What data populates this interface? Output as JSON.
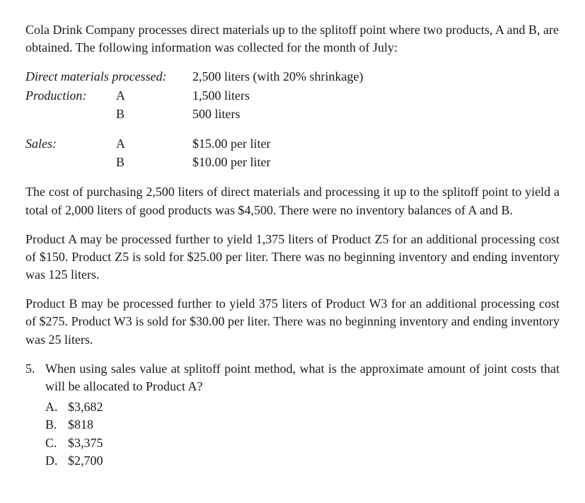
{
  "intro_paragraph": "Cola Drink Company processes direct materials up to the splitoff point where two products, A and B, are obtained. The following information was collected for the month of July:",
  "table1": {
    "row1_label": "Direct materials processed:",
    "row1_value": "2,500 liters (with 20% shrinkage)",
    "row2_label": "Production:",
    "row2_ab": "A",
    "row2_value": "1,500 liters",
    "row3_ab": "B",
    "row3_value": "500 liters"
  },
  "table2": {
    "row1_label": "Sales:",
    "row1_ab": "A",
    "row1_value": "$15.00 per liter",
    "row2_ab": "B",
    "row2_value": "$10.00 per liter"
  },
  "para2": "The cost of purchasing 2,500 liters of direct materials and processing it up to the splitoff point to yield a total of 2,000 liters of good products was $4,500. There were no inventory balances of A and B.",
  "para3": "Product A may be processed further to yield 1,375 liters of Product Z5 for an additional processing cost of $150. Product Z5 is sold for $25.00 per liter. There was no beginning inventory and ending inventory was 125 liters.",
  "para4": "Product B may be processed further to yield 375 liters of Product W3 for an additional processing cost of $275. Product W3 is sold for $30.00 per liter. There was no beginning inventory and ending inventory was 25 liters.",
  "question": {
    "number": "5.",
    "text": "When using sales value at splitoff point method, what is the approximate amount of joint costs that will be allocated to Product A?",
    "choices": [
      {
        "letter": "A.",
        "value": "$3,682"
      },
      {
        "letter": "B.",
        "value": "$818"
      },
      {
        "letter": "C.",
        "value": "$3,375"
      },
      {
        "letter": "D.",
        "value": "$2,700"
      }
    ]
  }
}
